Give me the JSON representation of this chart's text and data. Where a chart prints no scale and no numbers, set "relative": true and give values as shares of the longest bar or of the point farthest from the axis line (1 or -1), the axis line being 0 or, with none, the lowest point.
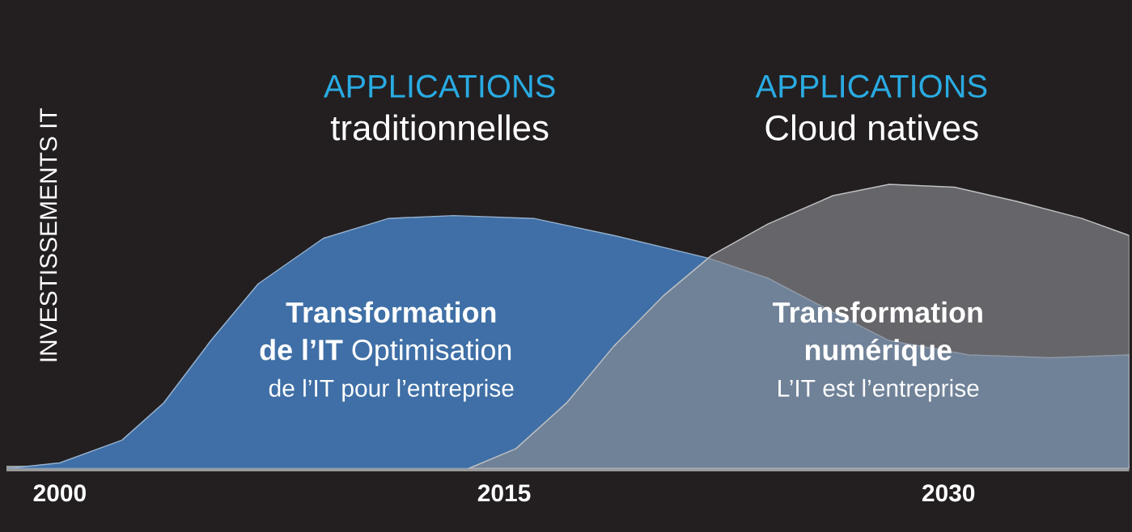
{
  "chart_data": {
    "type": "area",
    "relative": true,
    "ylabel": "INVESTISSEMENTS IT",
    "xlim": [
      1998.2,
      2036.1
    ],
    "xticks": [
      2000,
      2015,
      2030
    ],
    "series": [
      {
        "color": "#3f6fa6",
        "x": [
          1998.2,
          2000,
          2002.1,
          2003.5,
          2005.1,
          2006.7,
          2008.9,
          2011.1,
          2013.3,
          2016.0,
          2018.7,
          2021.9,
          2023.9,
          2026.1,
          2028.0,
          2030.7,
          2033.4,
          2036.1
        ],
        "values": [
          0,
          0.02,
          0.1,
          0.23,
          0.45,
          0.65,
          0.81,
          0.88,
          0.89,
          0.88,
          0.82,
          0.74,
          0.67,
          0.55,
          0.45,
          0.4,
          0.39,
          0.4
        ]
      },
      {
        "color": "#8a8c90",
        "x": [
          2013.8,
          2015.4,
          2017.1,
          2018.7,
          2020.4,
          2022.0,
          2023.9,
          2026.1,
          2028.0,
          2030.2,
          2032.3,
          2034.5,
          2036.1
        ],
        "values": [
          0,
          0.07,
          0.23,
          0.43,
          0.61,
          0.75,
          0.86,
          0.96,
          1.0,
          0.99,
          0.94,
          0.88,
          0.82
        ]
      }
    ],
    "annotations": [
      "APPLICATIONS",
      "traditionnelles",
      "APPLICATIONS",
      "Cloud natives",
      "Transformation",
      "**de l’IT** Optimisation",
      "de l’IT pour l’entreprise",
      "Transformation",
      "numérique",
      "L’IT est l’entreprise"
    ]
  }
}
